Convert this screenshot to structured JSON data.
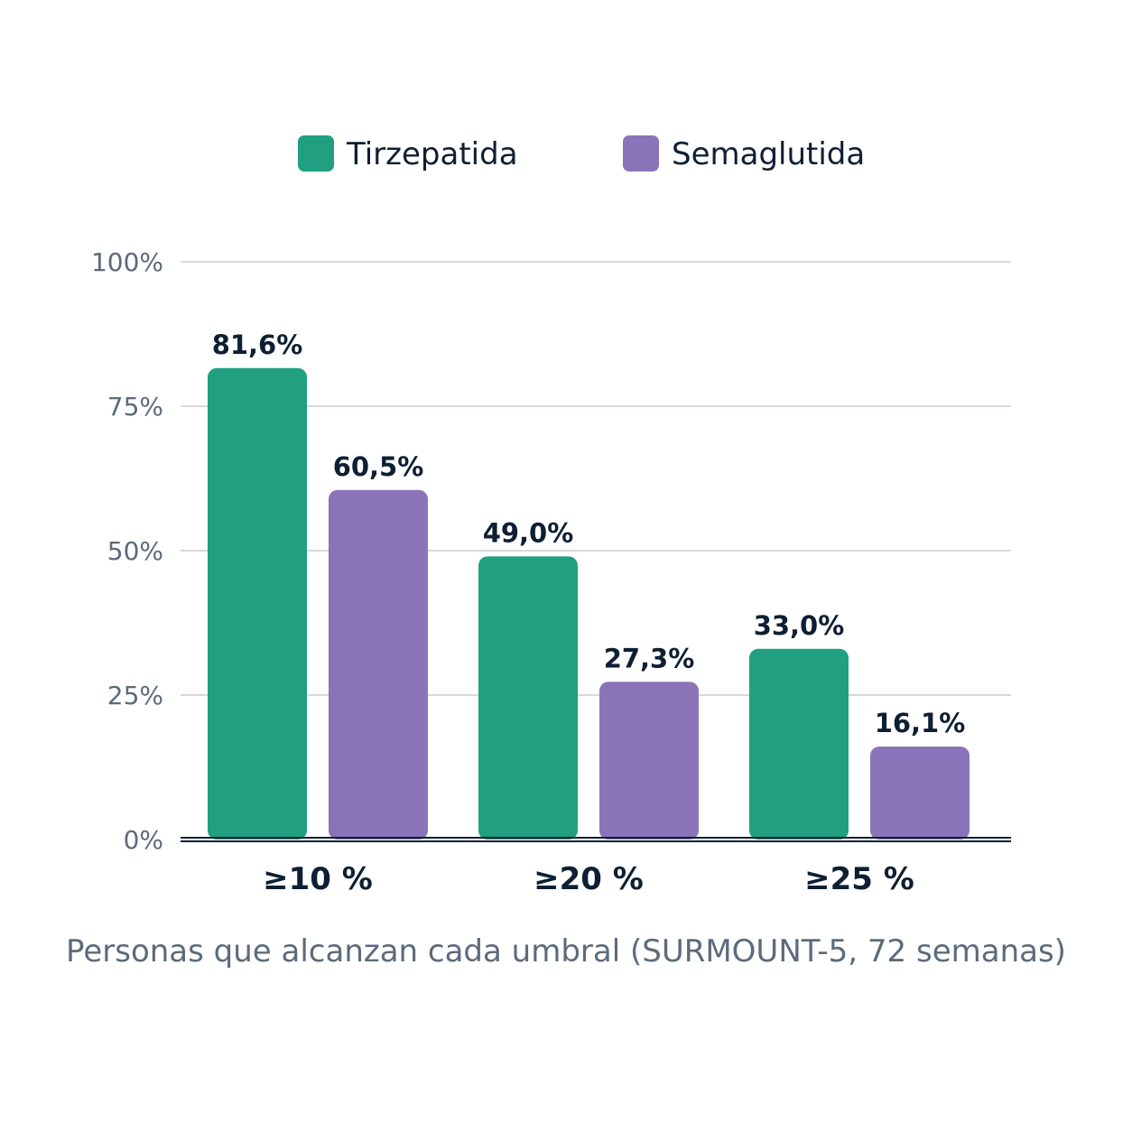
{
  "chart_data": {
    "type": "bar",
    "categories": [
      "≥10 %",
      "≥20 %",
      "≥25 %"
    ],
    "series": [
      {
        "name": "Tirzepatida",
        "color": "#20a080",
        "values": [
          81.6,
          49.0,
          33.0
        ],
        "labels": [
          "81,6%",
          "49,0%",
          "33,0%"
        ]
      },
      {
        "name": "Semaglutida",
        "color": "#8a74b9",
        "values": [
          60.5,
          27.3,
          16.1
        ],
        "labels": [
          "60,5%",
          "27,3%",
          "16,1%"
        ]
      }
    ],
    "ylim": [
      0,
      100
    ],
    "yticks": [
      0,
      25,
      50,
      75,
      100
    ],
    "ytick_labels": [
      "0%",
      "25%",
      "50%",
      "75%",
      "100%"
    ],
    "xlabel": "Personas que alcanzan cada umbral (SURMOUNT-5, 72 semanas)",
    "ylabel": "",
    "title": "",
    "grid": true,
    "legend": "top-center"
  }
}
